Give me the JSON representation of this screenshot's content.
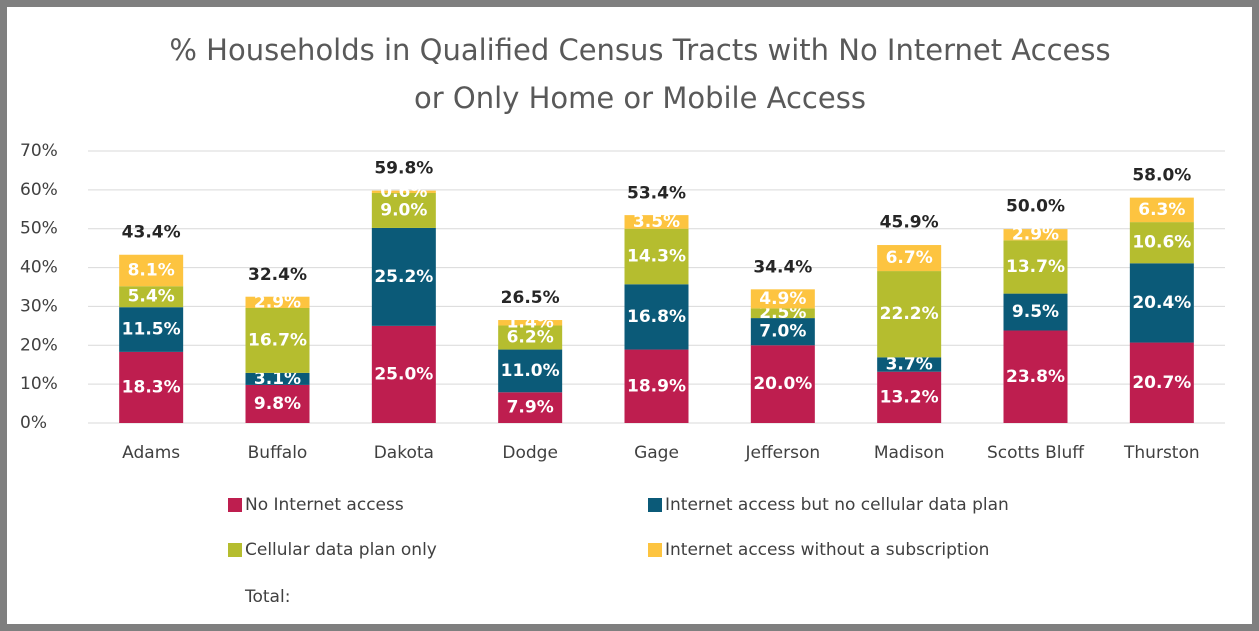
{
  "chart_data": {
    "type": "stacked_bar",
    "title": [
      "% Households in Qualified Census Tracts with No Internet Access",
      "or Only Home or Mobile Access"
    ],
    "categories": [
      "Adams",
      "Buffalo",
      "Dakota",
      "Dodge",
      "Gage",
      "Jefferson",
      "Madison",
      "Scotts Bluff",
      "Thurston"
    ],
    "series": [
      {
        "name": "No Internet access",
        "color": "#be1e4f",
        "values": [
          18.3,
          9.8,
          25.0,
          7.9,
          18.9,
          20.0,
          13.2,
          23.8,
          20.7
        ],
        "value_labels": [
          "18.3%",
          "9.8%",
          "25.0%",
          "7.9%",
          "18.9%",
          "20.0%",
          "13.2%",
          "23.8%",
          "20.7%"
        ]
      },
      {
        "name": "Internet access but no cellular data plan",
        "color": "#0b5a78",
        "values": [
          11.5,
          3.1,
          25.2,
          11.0,
          16.8,
          7.0,
          3.7,
          9.5,
          20.4
        ],
        "value_labels": [
          "11.5%",
          "3.1%",
          "25.2%",
          "11.0%",
          "16.8%",
          "7.0%",
          "3.7%",
          "9.5%",
          "20.4%"
        ]
      },
      {
        "name": "Cellular data plan only",
        "color": "#b5bd2f",
        "values": [
          5.4,
          16.7,
          9.0,
          6.2,
          14.3,
          2.5,
          22.2,
          13.7,
          10.6
        ],
        "value_labels": [
          "5.4%",
          "16.7%",
          "9.0%",
          "6.2%",
          "14.3%",
          "2.5%",
          "22.2%",
          "13.7%",
          "10.6%"
        ]
      },
      {
        "name": "Internet access without a subscription",
        "color": "#fdc440",
        "values": [
          8.1,
          2.9,
          0.6,
          1.4,
          3.5,
          4.9,
          6.7,
          2.9,
          6.3
        ],
        "value_labels": [
          "8.1%",
          "2.9%",
          "0.6%",
          "1.4%",
          "3.5%",
          "4.9%",
          "6.7%",
          "2.9%",
          "6.3%"
        ]
      }
    ],
    "totals": {
      "name": "Total:",
      "values": [
        43.4,
        32.4,
        59.8,
        26.5,
        53.4,
        34.4,
        45.9,
        50.0,
        58.0
      ],
      "value_labels": [
        "43.4%",
        "32.4%",
        "59.8%",
        "26.5%",
        "53.4%",
        "34.4%",
        "45.9%",
        "50.0%",
        "58.0%"
      ]
    },
    "ylim": [
      0,
      70
    ],
    "yticks": [
      {
        "value": 0,
        "label": "0%"
      },
      {
        "value": 10,
        "label": "10%"
      },
      {
        "value": 20,
        "label": "20%"
      },
      {
        "value": 30,
        "label": "30%"
      },
      {
        "value": 40,
        "label": "40%"
      },
      {
        "value": 50,
        "label": "50%"
      },
      {
        "value": 60,
        "label": "60%"
      },
      {
        "value": 70,
        "label": "70%"
      }
    ],
    "grid": true
  }
}
